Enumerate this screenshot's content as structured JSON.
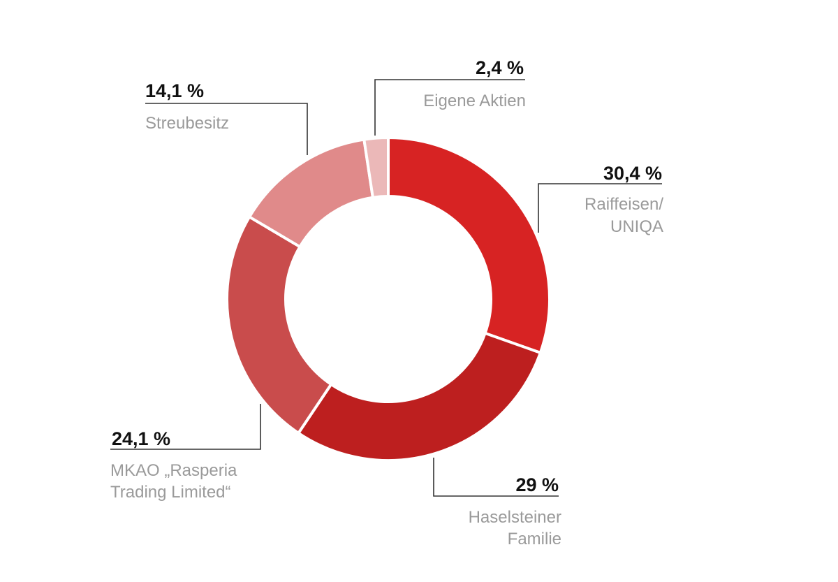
{
  "chart_data": {
    "type": "pie",
    "variant": "donut",
    "title": "",
    "slices": [
      {
        "name": "Raiffeisen/\nUNIQA",
        "name_lines": [
          "Raiffeisen/",
          "UNIQA"
        ],
        "value": 30.4,
        "value_label": "30,4 %",
        "color": "#d72323"
      },
      {
        "name": "Haselsteiner Familie",
        "name_lines": [
          "Haselsteiner",
          "Familie"
        ],
        "value": 29.0,
        "value_label": "29 %",
        "color": "#bd1f1f"
      },
      {
        "name": "MKAO „Rasperia Trading Limited“",
        "name_lines": [
          "MKAO „Rasperia",
          "Trading Limited“"
        ],
        "value": 24.1,
        "value_label": "24,1 %",
        "color": "#c94c4c"
      },
      {
        "name": "Streubesitz",
        "name_lines": [
          "Streubesitz"
        ],
        "value": 14.1,
        "value_label": "14,1 %",
        "color": "#e08a8a"
      },
      {
        "name": "Eigene Aktien",
        "name_lines": [
          "Eigene Aktien"
        ],
        "value": 2.4,
        "value_label": "2,4 %",
        "color": "#ebb8b8"
      }
    ]
  }
}
